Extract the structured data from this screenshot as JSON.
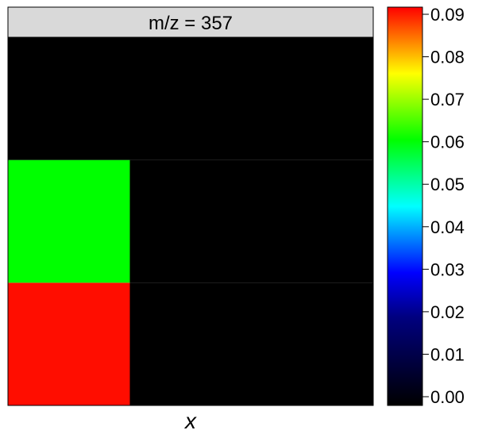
{
  "chart_data": {
    "type": "heatmap",
    "panel_title": "m/z = 357",
    "xlabel": "x",
    "ylabel": "",
    "grid": false,
    "layout": {
      "columns": 3,
      "rows": 3
    },
    "cells": [
      {
        "col": 0,
        "row": 0,
        "value": 0.09,
        "color": "#ff0d00"
      },
      {
        "col": 0,
        "row": 1,
        "value": 0.061,
        "color": "#00ff00"
      },
      {
        "col": 0,
        "row": 2,
        "value": 0.0,
        "color": "#000000"
      },
      {
        "col": 1,
        "row": 0,
        "value": 0.0,
        "color": "#000000"
      },
      {
        "col": 1,
        "row": 1,
        "value": 0.0,
        "color": "#000000"
      },
      {
        "col": 1,
        "row": 2,
        "value": 0.0,
        "color": "#000000"
      },
      {
        "col": 2,
        "row": 0,
        "value": 0.0,
        "color": "#000000"
      },
      {
        "col": 2,
        "row": 1,
        "value": 0.0,
        "color": "#000000"
      },
      {
        "col": 2,
        "row": 2,
        "value": 0.0,
        "color": "#000000"
      }
    ],
    "colorbar": {
      "min": 0.0,
      "max": 0.09,
      "ticks": [
        "0.00",
        "0.01",
        "0.02",
        "0.03",
        "0.04",
        "0.05",
        "0.06",
        "0.07",
        "0.08",
        "0.09"
      ],
      "tick_values": [
        0,
        0.01,
        0.02,
        0.03,
        0.04,
        0.05,
        0.06,
        0.07,
        0.08,
        0.09
      ],
      "color_stops": [
        {
          "value": 0.0,
          "color": "#000000"
        },
        {
          "value": 0.02,
          "color": "#000080"
        },
        {
          "value": 0.03,
          "color": "#0000ff"
        },
        {
          "value": 0.045,
          "color": "#00ffff"
        },
        {
          "value": 0.06,
          "color": "#00ff00"
        },
        {
          "value": 0.075,
          "color": "#ffff00"
        },
        {
          "value": 0.09,
          "color": "#ff0000"
        }
      ]
    }
  }
}
